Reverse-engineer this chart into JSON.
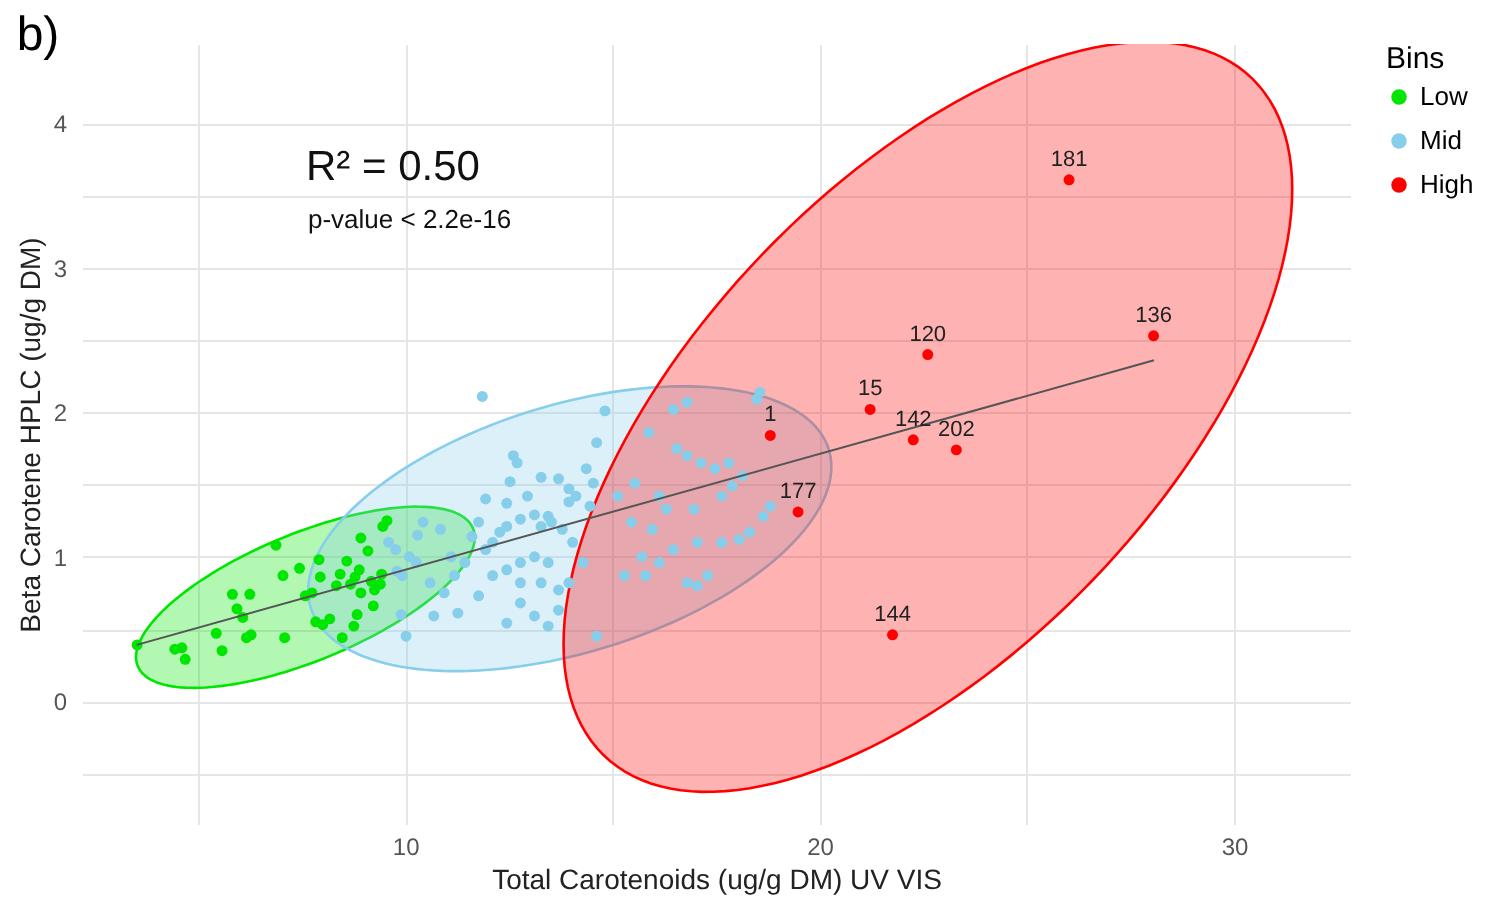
{
  "chart_data": {
    "type": "scatter",
    "title": "b)",
    "xlabel": "Total Carotenoids (ug/g DM) UV VIS",
    "ylabel": "Beta Carotene HPLC (ug/g DM)",
    "legend_title": "Bins",
    "legend": "right",
    "grid": true,
    "marker": "circle",
    "xlim": [
      2.2,
      32.8
    ],
    "ylim": [
      -0.85,
      4.55
    ],
    "xticks": [
      {
        "value": 5,
        "label": null
      },
      10,
      {
        "value": 15,
        "label": null
      },
      20,
      {
        "value": 25,
        "label": null
      },
      30
    ],
    "yticks": [
      {
        "value": -0.5,
        "label": null
      },
      0,
      {
        "value": 0.5,
        "label": null
      },
      1,
      {
        "value": 1.5,
        "label": null
      },
      2,
      {
        "value": 2.5,
        "label": null
      },
      3,
      {
        "value": 3.5,
        "label": null
      },
      4
    ],
    "series": [
      {
        "name": "Low",
        "color": "#00e600",
        "x": [
          3.53,
          4.44,
          4.61,
          4.69,
          5.58,
          5.44,
          5.83,
          6.25,
          5.94,
          6.08,
          6.17,
          6.28,
          7.09,
          7.05,
          6.88,
          7.45,
          7.75,
          7.92,
          7.95,
          7.84,
          8.01,
          8.18,
          8.43,
          8.48,
          8.59,
          8.68,
          8.79,
          8.89,
          8.93,
          9.1,
          9.18,
          9.23,
          9.26,
          8.84,
          8.76,
          9.4,
          9.46,
          9.56,
          9.43,
          8.93,
          8.34,
          7.59
        ],
        "values": [
          0.39,
          0.36,
          0.37,
          0.29,
          0.35,
          0.47,
          0.74,
          0.74,
          0.64,
          0.58,
          0.44,
          0.46,
          0.44,
          0.87,
          1.08,
          0.92,
          0.75,
          0.98,
          0.86,
          0.55,
          0.53,
          0.57,
          0.88,
          0.44,
          0.97,
          0.81,
          0.86,
          0.91,
          1.13,
          1.04,
          0.83,
          0.66,
          0.77,
          0.6,
          0.52,
          0.81,
          1.21,
          1.25,
          0.88,
          0.75,
          0.8,
          0.73
        ]
      },
      {
        "name": "Mid",
        "color": "#87ceeb",
        "x": [
          11.86,
          14.82,
          12.61,
          12.7,
          13.28,
          13.7,
          14.12,
          13.95,
          14.46,
          14.62,
          14.54,
          14.37,
          13.95,
          13.45,
          13.28,
          13.53,
          12.78,
          12.45,
          12.28,
          12.11,
          11.94,
          11.77,
          11.61,
          11.44,
          11.19,
          10.94,
          10.69,
          11.27,
          11.77,
          12.45,
          12.78,
          13.12,
          13.45,
          13.7,
          10.02,
          10.6,
          11.11,
          10.27,
          9.93,
          9.77,
          10.43,
          10.85,
          12.45,
          12.95,
          11.94,
          12.53,
          13.12,
          13.79,
          14.04,
          14.29,
          13.95,
          13.7,
          13.45,
          13.12,
          12.78,
          12.45,
          12.11,
          12.78,
          13.28,
          14.62,
          15.13,
          15.54,
          15.46,
          15.96,
          16.47,
          16.55,
          16.8,
          17.14,
          17.47,
          17.81,
          17.89,
          17.64,
          18.14,
          18.56,
          18.48,
          16.13,
          16.8,
          17.05,
          17.3,
          17.64,
          18.06,
          18.31,
          18.64,
          18.81,
          15.8,
          15.29,
          15.71,
          16.3,
          16.13,
          16.97,
          17.05,
          16.47,
          15.88,
          16.8,
          9.6,
          9.8,
          10.1,
          10.3,
          9.9
        ],
        "values": [
          2.11,
          2.01,
          1.7,
          1.65,
          1.55,
          1.54,
          1.42,
          1.38,
          1.35,
          1.79,
          1.51,
          1.61,
          1.47,
          1.28,
          1.21,
          1.24,
          1.26,
          1.21,
          1.17,
          1.1,
          1.05,
          1.24,
          1.14,
          0.96,
          0.87,
          0.75,
          0.59,
          0.61,
          0.73,
          0.54,
          0.68,
          0.59,
          0.52,
          0.63,
          0.45,
          0.82,
          1.0,
          0.96,
          0.87,
          1.05,
          1.24,
          1.19,
          1.37,
          1.42,
          1.4,
          1.52,
          1.29,
          1.19,
          1.1,
          0.96,
          0.82,
          0.77,
          0.96,
          1.0,
          0.96,
          0.91,
          0.87,
          0.82,
          0.82,
          0.45,
          1.42,
          1.51,
          1.24,
          1.19,
          2.02,
          1.75,
          1.7,
          1.65,
          1.61,
          1.65,
          1.49,
          1.42,
          1.56,
          2.14,
          2.09,
          0.96,
          0.82,
          0.8,
          0.87,
          1.1,
          1.12,
          1.17,
          1.28,
          1.35,
          0.87,
          0.87,
          1.0,
          1.33,
          1.42,
          1.33,
          1.1,
          1.05,
          1.86,
          2.07,
          1.1,
          0.9,
          1.0,
          1.15,
          0.6
        ]
      },
      {
        "name": "High",
        "color": "#ff0000",
        "x": [
          26.02,
          28.06,
          22.61,
          21.22,
          22.26,
          23.3,
          18.81,
          19.48,
          21.76
        ],
        "values": [
          3.61,
          2.53,
          2.4,
          2.02,
          1.81,
          1.74,
          1.84,
          1.31,
          0.46
        ]
      },
      {
        "type": "line",
        "marker": "none",
        "color": "#555555",
        "x": [
          3.52,
          28.07
        ],
        "values": [
          0.39,
          2.36
        ]
      }
    ],
    "annotations": [
      "R² = 0.50",
      "p-value < 2.2e-16",
      {
        "text": "181",
        "x": 26.02,
        "y": 3.61
      },
      {
        "text": "136",
        "x": 28.06,
        "y": 2.53
      },
      {
        "text": "120",
        "x": 22.61,
        "y": 2.4
      },
      {
        "text": "15",
        "x": 21.22,
        "y": 2.02
      },
      {
        "text": "142",
        "x": 22.26,
        "y": 1.81
      },
      {
        "text": "202",
        "x": 23.3,
        "y": 1.74
      },
      {
        "text": "1",
        "x": 18.81,
        "y": 1.84
      },
      {
        "text": "177",
        "x": 19.48,
        "y": 1.31
      },
      {
        "text": "144",
        "x": 21.76,
        "y": 0.46
      }
    ]
  }
}
